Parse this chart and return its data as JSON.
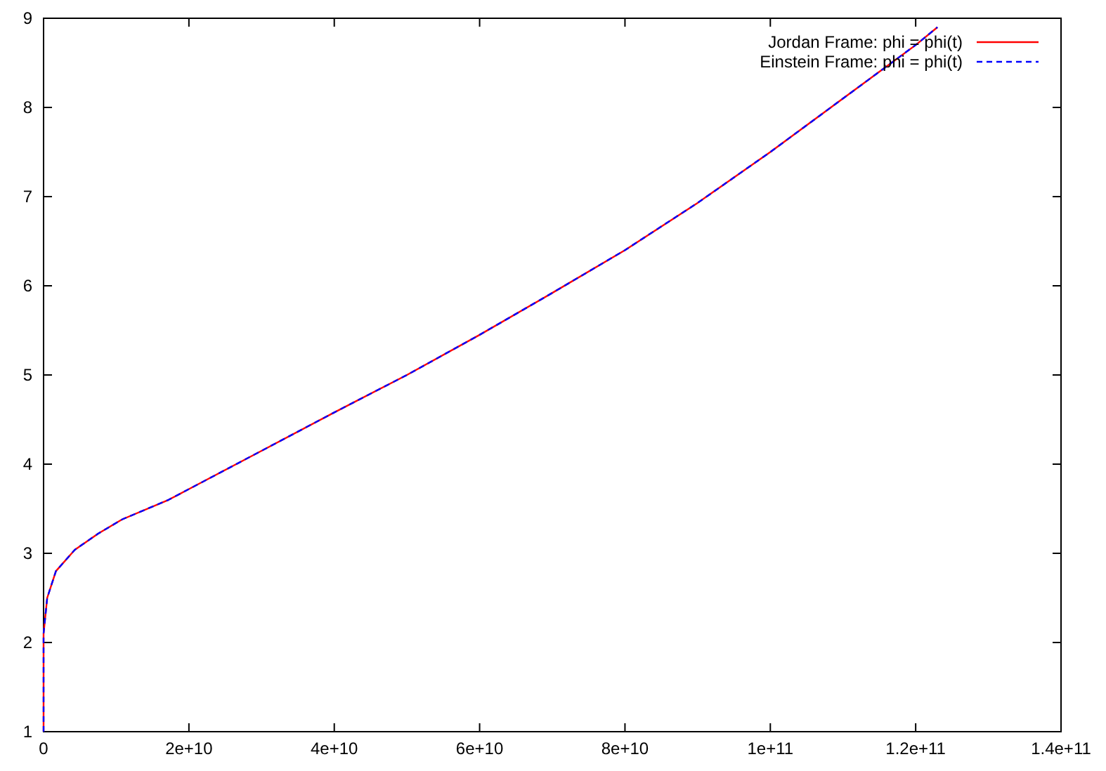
{
  "chart_data": {
    "type": "line",
    "x": [
      0,
      0,
      500000000.0,
      1700000000.0,
      4300000000.0,
      7500000000.0,
      10800000000.0,
      17200000000.0,
      20000000000.0,
      30000000000.0,
      40000000000.0,
      50000000000.0,
      60000000000.0,
      70000000000.0,
      80000000000.0,
      90000000000.0,
      100000000000.0,
      110000000000.0,
      120000000000.0,
      123000000000.0
    ],
    "series": [
      {
        "name": "Jordan Frame: phi = phi(t)",
        "color": "#ff0000",
        "line_style": "solid",
        "values": [
          1,
          2.1,
          2.5,
          2.8,
          3.04,
          3.22,
          3.38,
          3.6,
          3.72,
          4.15,
          4.58,
          5.0,
          5.45,
          5.92,
          6.4,
          6.93,
          7.5,
          8.1,
          8.7,
          8.9
        ]
      },
      {
        "name": "Einstein Frame: phi = phi(t)",
        "color": "#0000ff",
        "line_style": "dashed",
        "values": [
          1,
          2.1,
          2.5,
          2.8,
          3.04,
          3.22,
          3.38,
          3.6,
          3.72,
          4.15,
          4.58,
          5.0,
          5.45,
          5.92,
          6.4,
          6.93,
          7.5,
          8.1,
          8.7,
          8.9
        ]
      }
    ],
    "xlim": [
      0,
      140000000000.0
    ],
    "xticks": [
      0,
      {
        "value": 20000000000.0,
        "label": "2e+10"
      },
      {
        "value": 40000000000.0,
        "label": "4e+10"
      },
      {
        "value": 60000000000.0,
        "label": "6e+10"
      },
      {
        "value": 80000000000.0,
        "label": "8e+10"
      },
      {
        "value": 100000000000.0,
        "label": "1e+11"
      },
      {
        "value": 120000000000.0,
        "label": "1.2e+11"
      },
      {
        "value": 140000000000.0,
        "label": "1.4e+11"
      }
    ],
    "ylim": [
      1,
      9
    ],
    "yticks": [
      1,
      2,
      3,
      4,
      5,
      6,
      7,
      8,
      9
    ],
    "grid": false,
    "legend": "top right",
    "marker": "none"
  }
}
